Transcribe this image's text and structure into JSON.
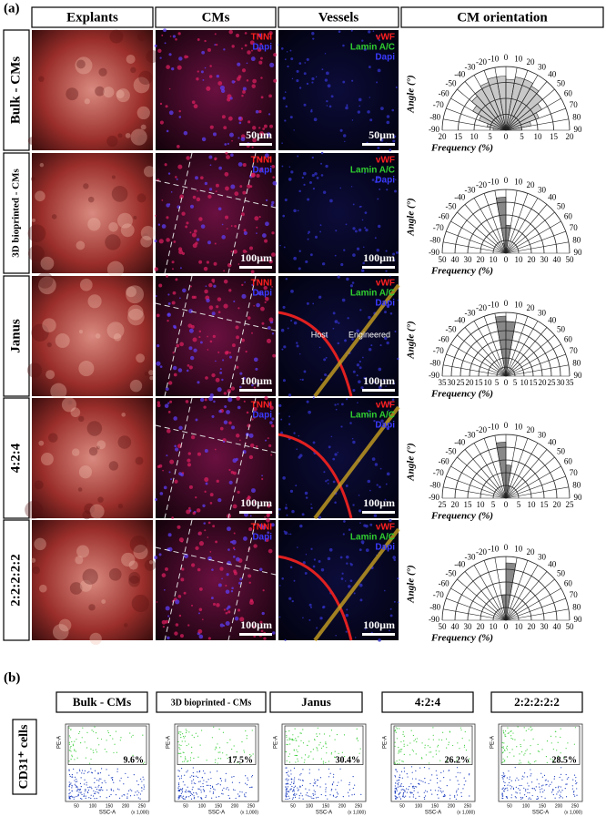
{
  "panel_a": {
    "label": "(a)",
    "headers": [
      "Explants",
      "CMs",
      "Vessels",
      "CM orientation"
    ],
    "angle_label": "Angle (°)",
    "frequency_label": "Frequency (%)",
    "angle_ticks": [
      -90,
      -80,
      -70,
      -60,
      -50,
      -40,
      -30,
      -20,
      -10,
      0,
      10,
      20,
      30,
      40,
      50,
      60,
      70,
      80,
      90
    ],
    "rows": [
      {
        "label": "Bulk - CMs",
        "cms_stains": [
          {
            "text": "TNNI",
            "color": "#ff2020"
          },
          {
            "text": "Dapi",
            "color": "#3a3aff"
          }
        ],
        "cms_scale": "50µm",
        "vessel_stains": [
          {
            "text": "vWF",
            "color": "#ff2020"
          },
          {
            "text": "Lamin A/C",
            "color": "#30d030"
          },
          {
            "text": "Dapi",
            "color": "#3a3aff"
          }
        ],
        "vessel_scale": "50µm",
        "polar": {
          "rlim": [
            0,
            20
          ],
          "rticks": [
            0,
            5,
            10,
            15,
            20
          ],
          "color": "#c8c8c8",
          "values": [
            4,
            6,
            9,
            12,
            14,
            15,
            16,
            17,
            17,
            16,
            17,
            17,
            16,
            15,
            13,
            11,
            8,
            5
          ]
        }
      },
      {
        "label": "3D bioprinted - CMs",
        "cms_stains": [
          {
            "text": "TNNI",
            "color": "#ff2020"
          },
          {
            "text": "Dapi",
            "color": "#3a3aff"
          }
        ],
        "cms_scale": "100µm",
        "vessel_stains": [
          {
            "text": "vWF",
            "color": "#ff2020"
          },
          {
            "text": "Lamin A/C",
            "color": "#30d030"
          },
          {
            "text": "Dapi",
            "color": "#3a3aff"
          }
        ],
        "vessel_scale": "100µm",
        "polar": {
          "rlim": [
            0,
            50
          ],
          "rticks": [
            0,
            10,
            20,
            30,
            40,
            50
          ],
          "color": "#888888",
          "values": [
            0,
            0,
            0,
            0,
            0,
            1,
            2,
            8,
            44,
            22,
            4,
            1,
            0,
            0,
            0,
            0,
            0,
            0
          ]
        }
      },
      {
        "label": "Janus",
        "cms_stains": [
          {
            "text": "TNNI",
            "color": "#ff2020"
          },
          {
            "text": "Dapi",
            "color": "#3a3aff"
          }
        ],
        "cms_scale": "100µm",
        "vessel_stains": [
          {
            "text": "vWF",
            "color": "#ff2020"
          },
          {
            "text": "Lamin A/C",
            "color": "#30d030"
          },
          {
            "text": "Dapi",
            "color": "#3a3aff"
          }
        ],
        "vessel_scale": "100µm",
        "vessel_notes": [
          "Host",
          "Engineered"
        ],
        "polar": {
          "rlim": [
            0,
            35
          ],
          "rticks": [
            0,
            5,
            10,
            15,
            20,
            25,
            30,
            35
          ],
          "color": "#888888",
          "values": [
            0,
            0,
            0,
            0,
            0,
            0,
            0,
            1,
            33,
            30,
            1,
            0,
            0,
            0,
            0,
            0,
            0,
            0
          ]
        }
      },
      {
        "label": "4:2:4",
        "cms_stains": [
          {
            "text": "TNNI",
            "color": "#ff2020"
          },
          {
            "text": "Dapi",
            "color": "#3a3aff"
          }
        ],
        "cms_scale": "100µm",
        "vessel_stains": [
          {
            "text": "vWF",
            "color": "#ff2020"
          },
          {
            "text": "Lamin A/C",
            "color": "#30d030"
          },
          {
            "text": "Dapi",
            "color": "#3a3aff"
          }
        ],
        "vessel_scale": "100µm",
        "polar": {
          "rlim": [
            0,
            25
          ],
          "rticks": [
            0,
            5,
            10,
            15,
            20,
            25
          ],
          "color": "#888888",
          "values": [
            0,
            0,
            0,
            0,
            0,
            0,
            0,
            2,
            22,
            13,
            5,
            1,
            0,
            0,
            0,
            0,
            0,
            0
          ]
        }
      },
      {
        "label": "2:2:2:2:2",
        "cms_stains": [
          {
            "text": "TNNI",
            "color": "#ff2020"
          },
          {
            "text": "Dapi",
            "color": "#3a3aff"
          }
        ],
        "cms_scale": "100µm",
        "vessel_stains": [
          {
            "text": "vWF",
            "color": "#ff2020"
          },
          {
            "text": "Lamin A/C",
            "color": "#30d030"
          },
          {
            "text": "Dapi",
            "color": "#3a3aff"
          }
        ],
        "vessel_scale": "100µm",
        "polar": {
          "rlim": [
            0,
            50
          ],
          "rticks": [
            0,
            10,
            20,
            30,
            40,
            50
          ],
          "color": "#888888",
          "values": [
            0,
            0,
            0,
            0,
            0,
            0,
            0,
            1,
            20,
            45,
            3,
            0,
            0,
            0,
            0,
            0,
            0,
            0
          ]
        }
      }
    ]
  },
  "panel_b": {
    "label": "(b)",
    "row_label": "CD31⁺ cells",
    "x_label": "SSC-A",
    "y_label": "PE-A",
    "x_unit": "(x 1,000)",
    "x_ticks": [
      "50",
      "100",
      "150",
      "200",
      "250"
    ],
    "groups": [
      {
        "name": "Bulk - CMs",
        "percent": "9.6%"
      },
      {
        "name": "3D bioprinted - CMs",
        "percent": "17.5%"
      },
      {
        "name": "Janus",
        "percent": "30.4%"
      },
      {
        "name": "4:2:4",
        "percent": "26.2%"
      },
      {
        "name": "2:2:2:2:2",
        "percent": "28.5%"
      }
    ]
  }
}
